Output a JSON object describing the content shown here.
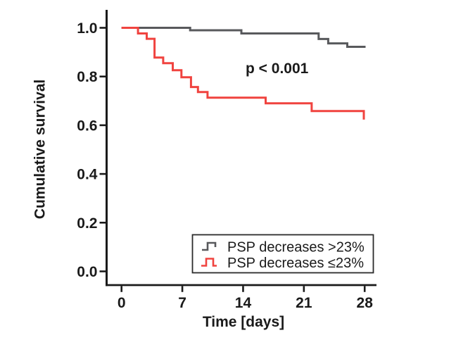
{
  "chart_data": {
    "type": "line",
    "subtype": "kaplan-meier-step",
    "title": "",
    "xlabel": "Time [days]",
    "ylabel": "Cumulative survival",
    "annotation": "p < 0.001",
    "xlim": [
      0,
      28
    ],
    "ylim": [
      0.0,
      1.0
    ],
    "xticks": [
      0,
      7,
      14,
      21,
      28
    ],
    "ytick_labels": [
      "1.0",
      "0.8",
      "0.6",
      "0.4",
      "0.2",
      "0.0"
    ],
    "grid": false,
    "legend_position": "inside-bottom-right",
    "colors": {
      "series_gray": "#58595c",
      "series_red": "#f0433f",
      "axis": "#1a1a1a"
    },
    "series": [
      {
        "name": "PSP decreases >23%",
        "color": "#58595c",
        "end_day": 28.1,
        "points": [
          [
            0,
            1.0
          ],
          [
            7.9,
            0.99
          ],
          [
            13.8,
            0.977
          ],
          [
            22.7,
            0.954
          ],
          [
            23.8,
            0.936
          ],
          [
            26.0,
            0.922
          ]
        ]
      },
      {
        "name": "PSP decreases ≤23%",
        "color": "#f0433f",
        "end_day": 27.9,
        "points": [
          [
            0,
            1.0
          ],
          [
            1.9,
            0.977
          ],
          [
            2.9,
            0.955
          ],
          [
            3.8,
            0.878
          ],
          [
            4.8,
            0.855
          ],
          [
            5.9,
            0.826
          ],
          [
            6.9,
            0.797
          ],
          [
            8.0,
            0.757
          ],
          [
            8.8,
            0.736
          ],
          [
            9.9,
            0.713
          ],
          [
            16.6,
            0.69
          ],
          [
            21.9,
            0.658
          ],
          [
            27.9,
            0.623
          ]
        ]
      }
    ]
  }
}
